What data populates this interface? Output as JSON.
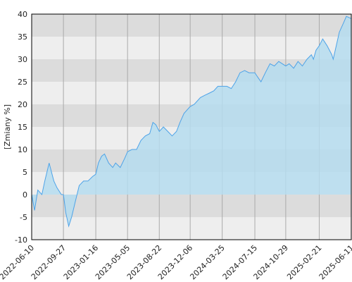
{
  "chart_data": {
    "type": "area",
    "y_label": "[Zmiany %]",
    "x": [
      "2022-06-10",
      "2022-06-20",
      "2022-07-01",
      "2022-07-15",
      "2022-07-25",
      "2022-08-09",
      "2022-08-25",
      "2022-09-05",
      "2022-09-20",
      "2022-09-27",
      "2022-10-05",
      "2022-10-15",
      "2022-10-25",
      "2022-11-05",
      "2022-11-20",
      "2022-12-05",
      "2022-12-20",
      "2023-01-05",
      "2023-01-16",
      "2023-01-25",
      "2023-02-05",
      "2023-02-15",
      "2023-03-01",
      "2023-03-15",
      "2023-03-25",
      "2023-04-10",
      "2023-04-25",
      "2023-05-05",
      "2023-05-20",
      "2023-06-05",
      "2023-06-20",
      "2023-07-05",
      "2023-07-20",
      "2023-07-31",
      "2023-08-10",
      "2023-08-22",
      "2023-09-05",
      "2023-09-20",
      "2023-10-05",
      "2023-10-20",
      "2023-11-01",
      "2023-11-15",
      "2023-12-06",
      "2023-12-20",
      "2024-01-10",
      "2024-01-25",
      "2024-02-10",
      "2024-02-25",
      "2024-03-10",
      "2024-03-25",
      "2024-04-10",
      "2024-04-25",
      "2024-05-10",
      "2024-05-25",
      "2024-06-10",
      "2024-06-25",
      "2024-07-15",
      "2024-07-25",
      "2024-08-05",
      "2024-08-20",
      "2024-09-05",
      "2024-09-20",
      "2024-10-05",
      "2024-10-29",
      "2024-11-10",
      "2024-11-25",
      "2024-12-10",
      "2024-12-25",
      "2025-01-10",
      "2025-01-25",
      "2025-02-01",
      "2025-02-10",
      "2025-02-21",
      "2025-03-05",
      "2025-03-20",
      "2025-04-05",
      "2025-04-10",
      "2025-05-01",
      "2025-05-15",
      "2025-05-25",
      "2025-06-11"
    ],
    "series": [
      {
        "name": "Zmiany",
        "color": "#4da3e8",
        "fill": "#b5dcee",
        "values": [
          0,
          -3.5,
          1,
          0,
          3,
          7,
          3,
          1.5,
          0,
          0,
          -4,
          -7,
          -5,
          -2,
          2,
          3,
          3,
          4,
          4.5,
          7,
          8.5,
          9,
          7,
          6,
          7,
          6,
          8,
          9.5,
          10,
          10,
          12,
          13,
          13.5,
          16,
          15.5,
          14,
          15,
          14,
          13,
          14,
          16,
          18,
          19.5,
          20,
          21.5,
          22,
          22.5,
          23,
          24,
          24,
          24,
          23.5,
          25,
          27,
          27.5,
          27,
          27,
          26,
          25,
          27,
          29,
          28.5,
          29.5,
          28.5,
          29,
          28,
          29.5,
          28.5,
          30,
          31,
          30,
          32,
          33,
          34.5,
          33,
          31,
          30,
          36,
          38,
          39.5,
          39
        ]
      }
    ],
    "xlim": [
      "2022-06-10",
      "2025-06-11"
    ],
    "xticks": [
      "2022-06-10",
      "2022-09-27",
      "2023-01-16",
      "2023-05-05",
      "2023-08-22",
      "2023-12-06",
      "2024-03-25",
      "2024-07-15",
      "2024-10-29",
      "2025-02-21",
      "2025-06-11"
    ],
    "ylim": [
      -10,
      40
    ],
    "yticks": [
      -10,
      -5,
      0,
      5,
      10,
      15,
      20,
      25,
      30,
      35,
      40
    ],
    "grid": true,
    "band_colors": [
      "#eeeeee",
      "#dcdcdc"
    ]
  }
}
